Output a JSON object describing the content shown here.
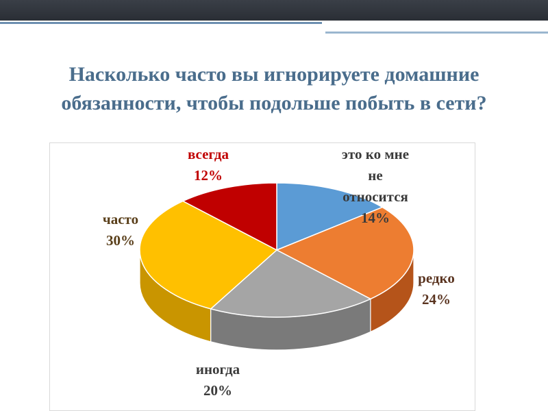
{
  "slide": {
    "title_line1": "Насколько часто вы игнорируете домашние",
    "title_line2": "обязанности, чтобы подольше побыть в сети?"
  },
  "chart_data": {
    "type": "pie",
    "title": "",
    "style": "3d",
    "labels_outside": true,
    "slices": [
      {
        "label": "это ко мне не относится",
        "label_lines": [
          "это ко мне",
          "не",
          "относится"
        ],
        "pct_text": "14%",
        "value": 14,
        "color": "#5b9bd5",
        "side_color": "#3f77ad",
        "label_color": "#3b3b3b"
      },
      {
        "label": "редко",
        "label_lines": [
          "редко"
        ],
        "pct_text": "24%",
        "value": 24,
        "color": "#ed7d31",
        "side_color": "#b5541a",
        "label_color": "#5a3420"
      },
      {
        "label": "иногда",
        "label_lines": [
          "иногда"
        ],
        "pct_text": "20%",
        "value": 20,
        "color": "#a5a5a5",
        "side_color": "#7a7a7a",
        "label_color": "#3b3b3b"
      },
      {
        "label": "часто",
        "label_lines": [
          "часто"
        ],
        "pct_text": "30%",
        "value": 30,
        "color": "#ffc000",
        "side_color": "#c99500",
        "label_color": "#5a3f1a"
      },
      {
        "label": "всегда",
        "label_lines": [
          "всегда"
        ],
        "pct_text": "12%",
        "value": 12,
        "color": "#c00000",
        "side_color": "#8a0000",
        "label_color": "#c00000"
      }
    ]
  }
}
